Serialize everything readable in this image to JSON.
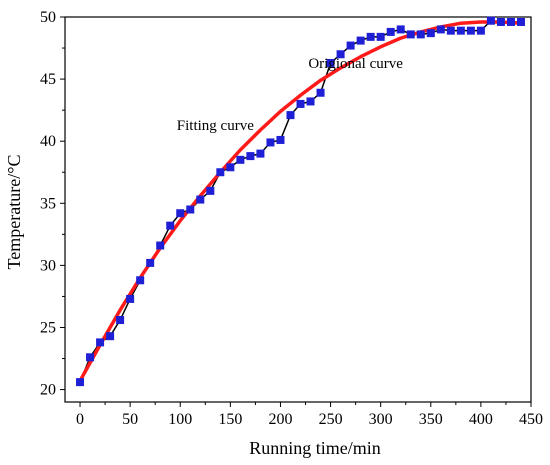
{
  "chart_data": {
    "type": "line",
    "xlabel": "Running time/min",
    "ylabel": "Temperature/°C",
    "xlim": [
      -15,
      450
    ],
    "ylim": [
      19,
      50
    ],
    "x_ticks": [
      0,
      50,
      100,
      150,
      200,
      250,
      300,
      350,
      400,
      450
    ],
    "y_ticks": [
      20,
      25,
      30,
      35,
      40,
      45,
      50
    ],
    "grid": false,
    "colors": {
      "original": "#1f1fd6",
      "original_line": "#000000",
      "fitting": "#ff1a1a"
    },
    "annotations": [
      {
        "text": "Origional curve",
        "x": 275,
        "y": 45.9,
        "series": "original"
      },
      {
        "text": "Fitting curve",
        "x": 135,
        "y": 40.9,
        "series": "fitting"
      }
    ],
    "series": [
      {
        "id": "original",
        "x": [
          0,
          10,
          20,
          30,
          40,
          50,
          60,
          70,
          80,
          90,
          100,
          110,
          120,
          130,
          140,
          150,
          160,
          170,
          180,
          190,
          200,
          210,
          220,
          230,
          240,
          250,
          260,
          270,
          280,
          290,
          300,
          310,
          320,
          330,
          340,
          350,
          360,
          370,
          380,
          390,
          400,
          410,
          420,
          430,
          440
        ],
        "values": [
          20.6,
          22.6,
          23.8,
          24.3,
          25.6,
          27.3,
          28.8,
          30.2,
          31.6,
          33.2,
          34.2,
          34.5,
          35.3,
          36.0,
          37.5,
          37.9,
          38.5,
          38.8,
          39.0,
          39.9,
          40.1,
          42.1,
          43.0,
          43.2,
          43.9,
          46.3,
          47.0,
          47.7,
          48.1,
          48.4,
          48.4,
          48.8,
          49.0,
          48.6,
          48.6,
          48.7,
          49.0,
          48.9,
          48.9,
          48.9,
          48.9,
          49.7,
          49.6,
          49.6,
          49.6
        ]
      },
      {
        "id": "fitting",
        "x": [
          0,
          20,
          40,
          60,
          80,
          100,
          120,
          140,
          160,
          180,
          200,
          220,
          240,
          260,
          280,
          300,
          320,
          340,
          360,
          380,
          400,
          420,
          440
        ],
        "values": [
          20.7,
          23.6,
          26.4,
          29.0,
          31.4,
          33.6,
          35.6,
          37.5,
          39.3,
          40.9,
          42.4,
          43.7,
          44.9,
          45.9,
          46.8,
          47.6,
          48.3,
          48.8,
          49.2,
          49.5,
          49.6,
          49.6,
          49.5
        ]
      }
    ]
  }
}
